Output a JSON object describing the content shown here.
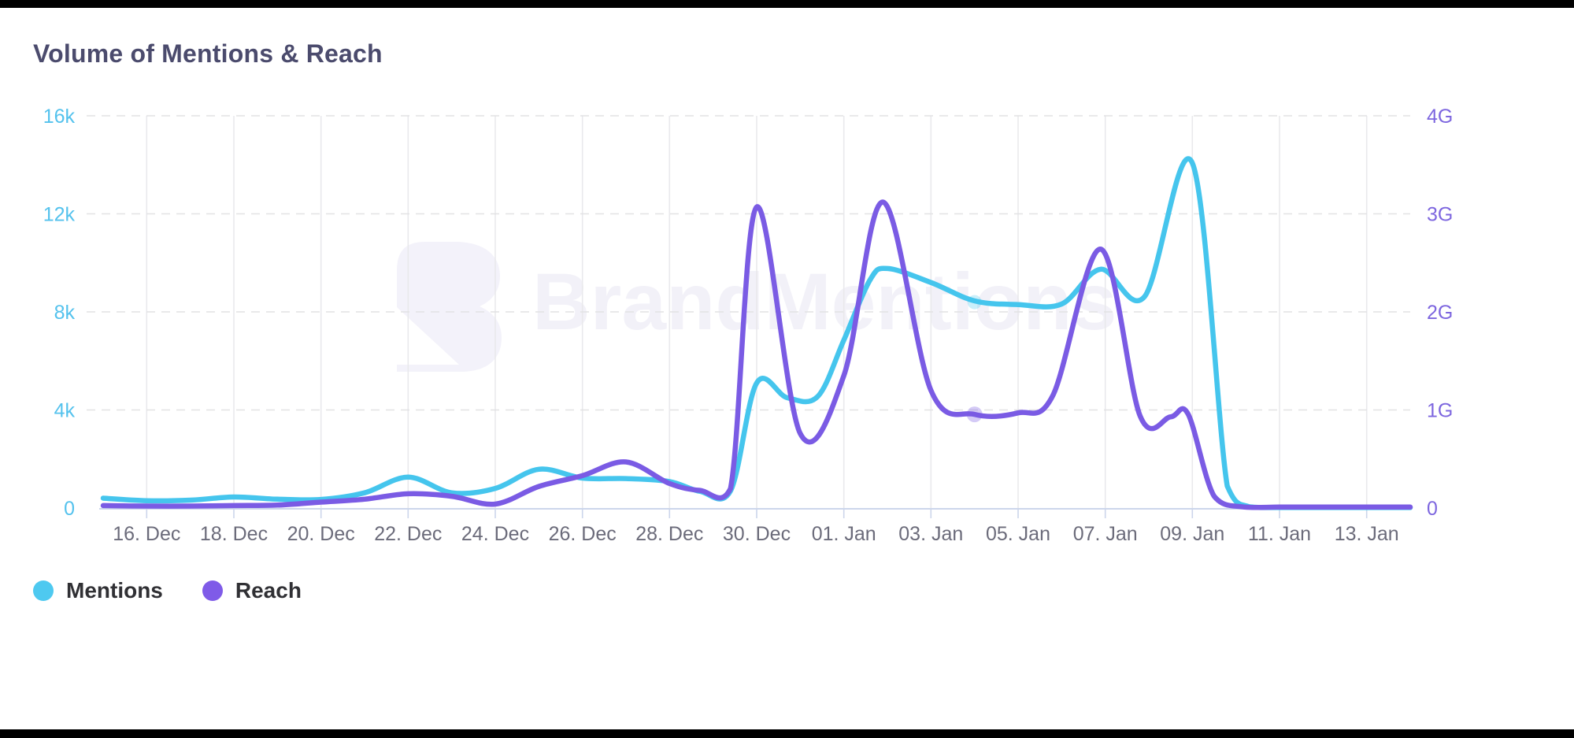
{
  "title": "Volume of Mentions & Reach",
  "watermark": {
    "text": "BrandMentions"
  },
  "legend": {
    "items": [
      {
        "label": "Mentions",
        "color": "#4ec9f0"
      },
      {
        "label": "Reach",
        "color": "#7f5be8"
      }
    ]
  },
  "colors": {
    "vertical_grid": "#e9e9ec",
    "dashed_grid": "#e2e2e4",
    "axis_line": "#ccd6eb",
    "left_axis_labels": "#54c2ed",
    "right_axis_labels": "#7d66df",
    "x_axis_labels": "#6b6b7a",
    "watermark": "#f2f1f8"
  },
  "chart_data": {
    "type": "line",
    "title": "Volume of Mentions & Reach",
    "x_unit": "days (Dec 15 - Jan 14)",
    "x_tick_days": [
      1,
      3,
      5,
      7,
      9,
      11,
      13,
      15,
      17,
      19,
      21,
      23,
      25,
      27,
      29
    ],
    "x_tick_labels": [
      "16. Dec",
      "18. Dec",
      "20. Dec",
      "22. Dec",
      "24. Dec",
      "26. Dec",
      "28. Dec",
      "30. Dec",
      "01. Jan",
      "03. Jan",
      "05. Jan",
      "07. Jan",
      "09. Jan",
      "11. Jan",
      "13. Jan"
    ],
    "left_axis": {
      "max": 16000,
      "tick_values": [
        0,
        4000,
        8000,
        12000,
        16000
      ],
      "tick_labels": [
        "0",
        "4k",
        "8k",
        "12k",
        "16k"
      ]
    },
    "right_axis": {
      "max": 4,
      "tick_values": [
        0,
        1,
        2,
        3,
        4
      ],
      "tick_labels": [
        "0",
        "1G",
        "2G",
        "3G",
        "4G"
      ]
    },
    "grid": {
      "horizontal": "dashed",
      "vertical": "solid"
    },
    "legend_position": "bottom-left",
    "series": [
      {
        "name": "Mentions",
        "axis": "left",
        "color": "#45c5ed",
        "points": [
          [
            0,
            400
          ],
          [
            1,
            300
          ],
          [
            2,
            320
          ],
          [
            3,
            450
          ],
          [
            4,
            360
          ],
          [
            5,
            350
          ],
          [
            6,
            620
          ],
          [
            7,
            1260
          ],
          [
            8,
            620
          ],
          [
            9,
            800
          ],
          [
            10,
            1580
          ],
          [
            11,
            1220
          ],
          [
            12,
            1200
          ],
          [
            13,
            1080
          ],
          [
            13.7,
            680
          ],
          [
            14.4,
            700
          ],
          [
            15,
            5100
          ],
          [
            15.7,
            4500
          ],
          [
            16.4,
            4550
          ],
          [
            17,
            6850
          ],
          [
            17.6,
            9300
          ],
          [
            18,
            9770
          ],
          [
            19,
            9200
          ],
          [
            20,
            8450
          ],
          [
            21,
            8300
          ],
          [
            22,
            8320
          ],
          [
            22.9,
            9740
          ],
          [
            23.9,
            8620
          ],
          [
            25,
            14070
          ],
          [
            25.8,
            900
          ],
          [
            26.3,
            50
          ],
          [
            27,
            20
          ],
          [
            28,
            20
          ],
          [
            29,
            20
          ],
          [
            30,
            20
          ]
        ]
      },
      {
        "name": "Reach",
        "axis": "right",
        "color": "#7a5be4",
        "points": [
          [
            0,
            0.025
          ],
          [
            1,
            0.02
          ],
          [
            2,
            0.02
          ],
          [
            3,
            0.025
          ],
          [
            4,
            0.03
          ],
          [
            5,
            0.06
          ],
          [
            6,
            0.09
          ],
          [
            7,
            0.145
          ],
          [
            8,
            0.12
          ],
          [
            9,
            0.04
          ],
          [
            10,
            0.22
          ],
          [
            11,
            0.33
          ],
          [
            12,
            0.47
          ],
          [
            13,
            0.25
          ],
          [
            13.7,
            0.18
          ],
          [
            14.4,
            0.2
          ],
          [
            15,
            3.07
          ],
          [
            16,
            0.76
          ],
          [
            17,
            1.35
          ],
          [
            17.9,
            3.12
          ],
          [
            19,
            1.2
          ],
          [
            20,
            0.955
          ],
          [
            21,
            0.97
          ],
          [
            21.8,
            1.15
          ],
          [
            22.9,
            2.64
          ],
          [
            23.8,
            0.94
          ],
          [
            24.5,
            0.93
          ],
          [
            24.9,
            0.96
          ],
          [
            25.5,
            0.12
          ],
          [
            26.2,
            0.01
          ],
          [
            27,
            0.01
          ],
          [
            28,
            0.01
          ],
          [
            29,
            0.01
          ],
          [
            30,
            0.01
          ]
        ]
      }
    ],
    "hover_markers": [
      {
        "series": 0,
        "day": 20,
        "value": 8400,
        "radius": 9,
        "opacity": 0.28
      },
      {
        "series": 1,
        "day": 20,
        "value": 0.955,
        "radius": 10,
        "opacity": 0.32
      }
    ]
  }
}
